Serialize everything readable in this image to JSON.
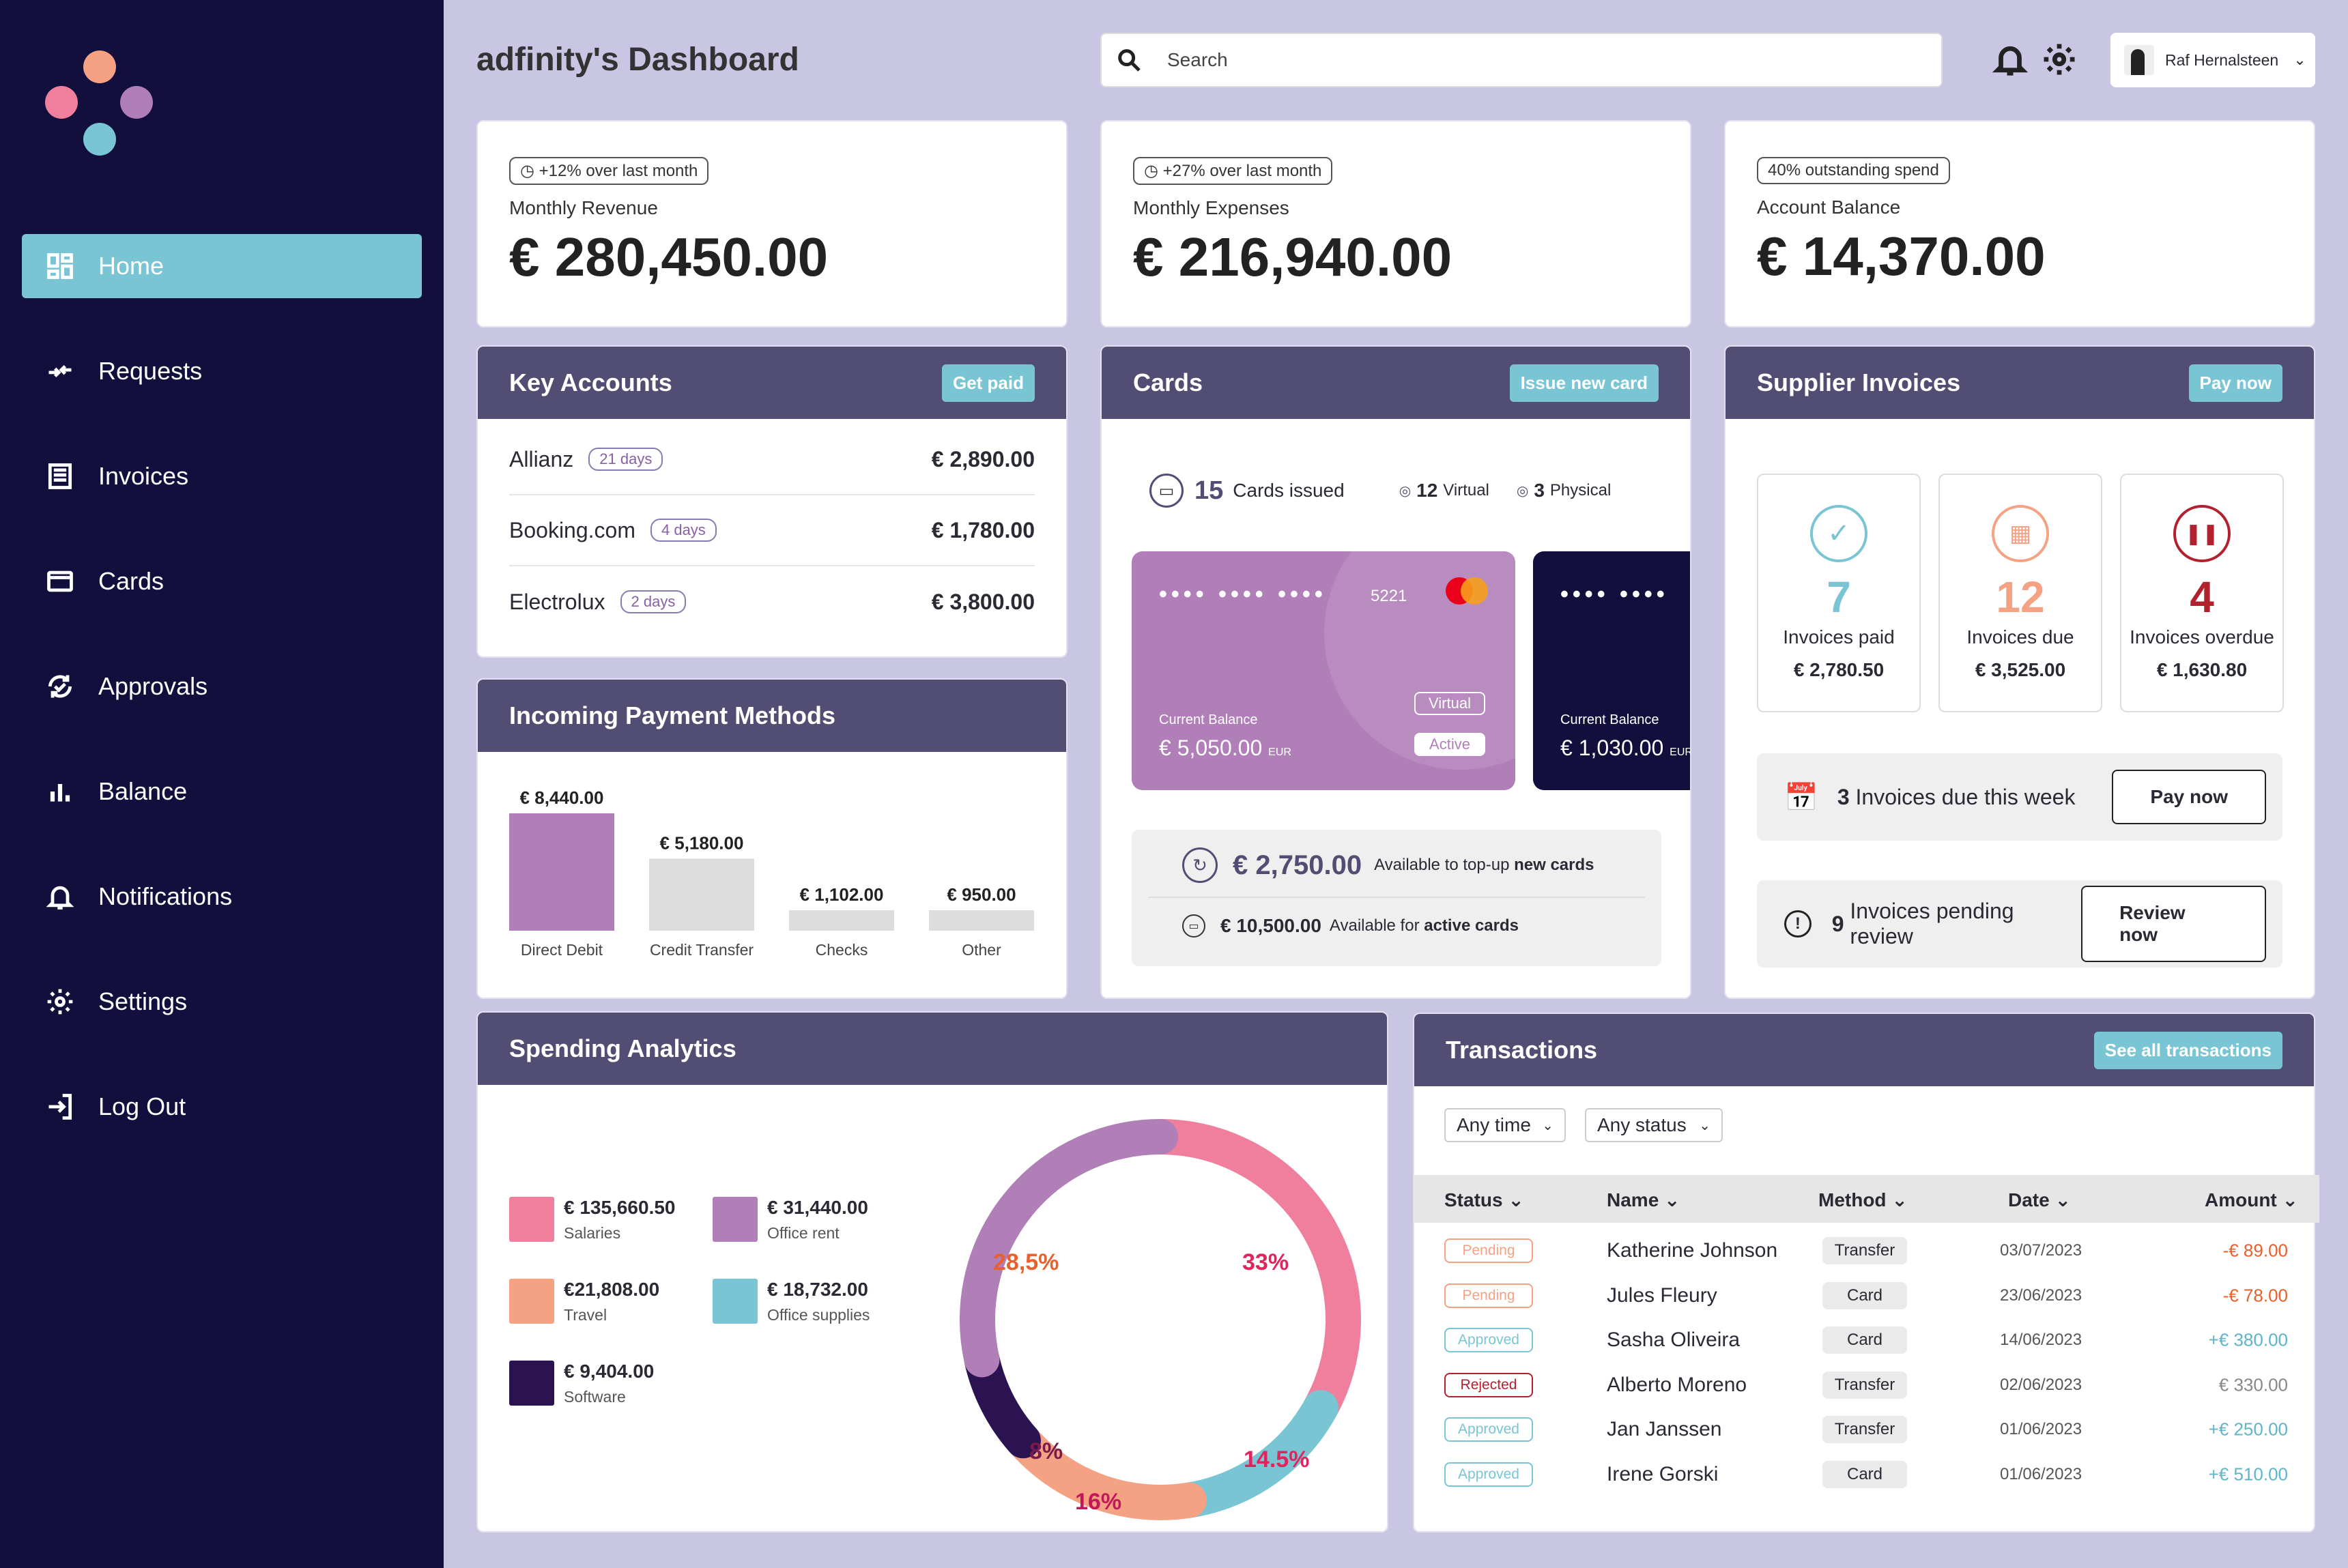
{
  "app": {
    "title": "adfinity's Dashboard"
  },
  "colors": {
    "sidebar": "#130f3d",
    "accent": "#79c5d4",
    "header": "#524d72",
    "purple": "#b07fb8",
    "pink": "#ef7f9d",
    "peach": "#f4a184",
    "teal": "#79c5d4",
    "dark": "#2b1352"
  },
  "sidebar": {
    "items": [
      {
        "label": "Home",
        "icon": "dashboard-icon"
      },
      {
        "label": "Requests",
        "icon": "transfer-icon"
      },
      {
        "label": "Invoices",
        "icon": "invoice-icon"
      },
      {
        "label": "Cards",
        "icon": "card-icon"
      },
      {
        "label": "Approvals",
        "icon": "approval-icon"
      },
      {
        "label": "Balance",
        "icon": "bar-chart-icon"
      },
      {
        "label": "Notifications",
        "icon": "bell-icon"
      },
      {
        "label": "Settings",
        "icon": "gear-icon"
      },
      {
        "label": "Log Out",
        "icon": "logout-icon"
      }
    ]
  },
  "search": {
    "placeholder": "Search"
  },
  "user": {
    "name": "Raf Hernalsteen"
  },
  "kpis": [
    {
      "badge": "+12% over last month",
      "label": "Monthly Revenue",
      "value": "€ 280,450.00"
    },
    {
      "badge": "+27% over last month",
      "label": "Monthly Expenses",
      "value": "€ 216,940.00"
    },
    {
      "badge": "40% outstanding spend",
      "label": "Account Balance",
      "value": "€ 14,370.00"
    }
  ],
  "key_accounts": {
    "title": "Key Accounts",
    "button": "Get paid",
    "rows": [
      {
        "name": "Allianz",
        "days": "21 days",
        "amount": "€ 2,890.00"
      },
      {
        "name": "Booking.com",
        "days": "4 days",
        "amount": "€ 1,780.00"
      },
      {
        "name": "Electrolux",
        "days": "2 days",
        "amount": "€ 3,800.00"
      }
    ]
  },
  "cards": {
    "title": "Cards",
    "button": "Issue new card",
    "issued_count": "15",
    "issued_label": "Cards issued",
    "virtual_count": "12",
    "virtual_label": "Virtual",
    "physical_count": "3",
    "physical_label": "Physical",
    "card1": {
      "mask": "•••• •••• ••••",
      "last4": "5221",
      "balance_label": "Current Balance",
      "balance": "€ 5,050.00",
      "currency": "EUR",
      "type": "Virtual",
      "status": "Active"
    },
    "card2": {
      "mask": "•••• ••••",
      "balance_label": "Current Balance",
      "balance": "€ 1,030.00",
      "currency": "EUR"
    },
    "topup_amount": "€ 2,750.00",
    "topup_text": "Available to top-up",
    "topup_bold": "new cards",
    "active_amount": "€ 10,500.00",
    "active_text": "Available for",
    "active_bold": "active cards"
  },
  "suppliers": {
    "title": "Supplier Invoices",
    "button": "Pay now",
    "paid": {
      "count": "7",
      "label": "Invoices paid",
      "value": "€ 2,780.50"
    },
    "due": {
      "count": "12",
      "label": "Invoices due",
      "value": "€ 3,525.00"
    },
    "overdue": {
      "count": "4",
      "label": "Invoices overdue",
      "value": "€ 1,630.80"
    },
    "week_count": "3",
    "week_text": "Invoices due this week",
    "week_button": "Pay now",
    "review_count": "9",
    "review_text": "Invoices pending review",
    "review_button": "Review now"
  },
  "payment_methods": {
    "title": "Incoming Payment Methods"
  },
  "spending": {
    "title": "Spending Analytics",
    "legend": [
      {
        "value": "€ 135,660.50",
        "name": "Salaries",
        "color": "#ef7f9d"
      },
      {
        "value": "€ 31,440.00",
        "name": "Office rent",
        "color": "#b07fb8"
      },
      {
        "value": "€21,808.00",
        "name": "Travel",
        "color": "#f4a184"
      },
      {
        "value": "€ 18,732.00",
        "name": "Office supplies",
        "color": "#79c5d4"
      },
      {
        "value": "€ 9,404.00",
        "name": "Software",
        "color": "#2b1352"
      }
    ]
  },
  "transactions": {
    "title": "Transactions",
    "button": "See all transactions",
    "filter_time": "Any time",
    "filter_status": "Any status",
    "headers": {
      "status": "Status",
      "name": "Name",
      "method": "Method",
      "date": "Date",
      "amount": "Amount"
    },
    "rows": [
      {
        "status": "Pending",
        "name": "Katherine Johnson",
        "method": "Transfer",
        "date": "03/07/2023",
        "amount": "-€ 89.00"
      },
      {
        "status": "Pending",
        "name": "Jules Fleury",
        "method": "Card",
        "date": "23/06/2023",
        "amount": "-€ 78.00"
      },
      {
        "status": "Approved",
        "name": "Sasha Oliveira",
        "method": "Card",
        "date": "14/06/2023",
        "amount": "+€ 380.00"
      },
      {
        "status": "Rejected",
        "name": "Alberto Moreno",
        "method": "Transfer",
        "date": "02/06/2023",
        "amount": "€ 330.00"
      },
      {
        "status": "Approved",
        "name": "Jan Janssen",
        "method": "Transfer",
        "date": "01/06/2023",
        "amount": "+€ 250.00"
      },
      {
        "status": "Approved",
        "name": "Irene Gorski",
        "method": "Card",
        "date": "01/06/2023",
        "amount": "+€ 510.00"
      }
    ]
  },
  "chart_data": [
    {
      "type": "bar",
      "title": "Incoming Payment Methods",
      "categories": [
        "Direct Debit",
        "Credit Transfer",
        "Checks",
        "Other"
      ],
      "values": [
        8440,
        5180,
        1102,
        950
      ],
      "value_labels": [
        "€ 8,440.00",
        "€ 5,180.00",
        "€ 1,102.00",
        "€ 950.00"
      ],
      "colors": [
        "#b07fb8",
        "#dddddd",
        "#dddddd",
        "#dddddd"
      ]
    },
    {
      "type": "pie",
      "title": "Spending Analytics",
      "slices": [
        {
          "label": "33%",
          "value": 33,
          "color": "#ef7f9d",
          "label_color": "#e0245e"
        },
        {
          "label": "14.5%",
          "value": 14.5,
          "color": "#79c5d4",
          "label_color": "#e0245e"
        },
        {
          "label": "16%",
          "value": 16,
          "color": "#f4a184",
          "label_color": "#c2185b"
        },
        {
          "label": "8%",
          "value": 8,
          "color": "#2b1352",
          "label_color": "#7a1a4a"
        },
        {
          "label": "28,5%",
          "value": 28.5,
          "color": "#b07fb8",
          "label_color": "#e8602c"
        }
      ]
    }
  ]
}
